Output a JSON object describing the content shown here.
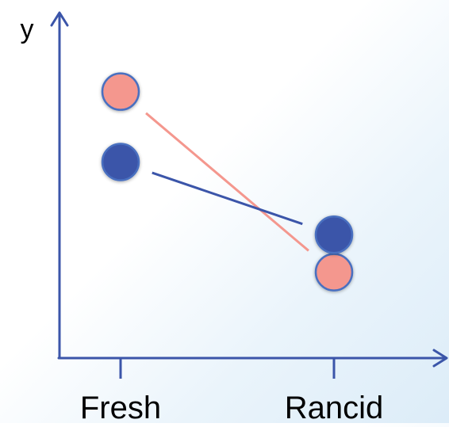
{
  "chart_data": {
    "type": "line",
    "ylabel": "y",
    "xlabel": "",
    "categories": [
      "Fresh",
      "Rancid"
    ],
    "series": [
      {
        "color": "#f4978e",
        "values": [
          0.92,
          0.15
        ]
      },
      {
        "color": "#3b55a9",
        "values": [
          0.62,
          0.31
        ]
      }
    ],
    "grid": false,
    "ylim": [
      0,
      1
    ],
    "colors": {
      "axis": "#3b55a9",
      "salmon": "#f4978e",
      "blue": "#3b55a9",
      "marker_edge": "#4a6fc0"
    }
  }
}
